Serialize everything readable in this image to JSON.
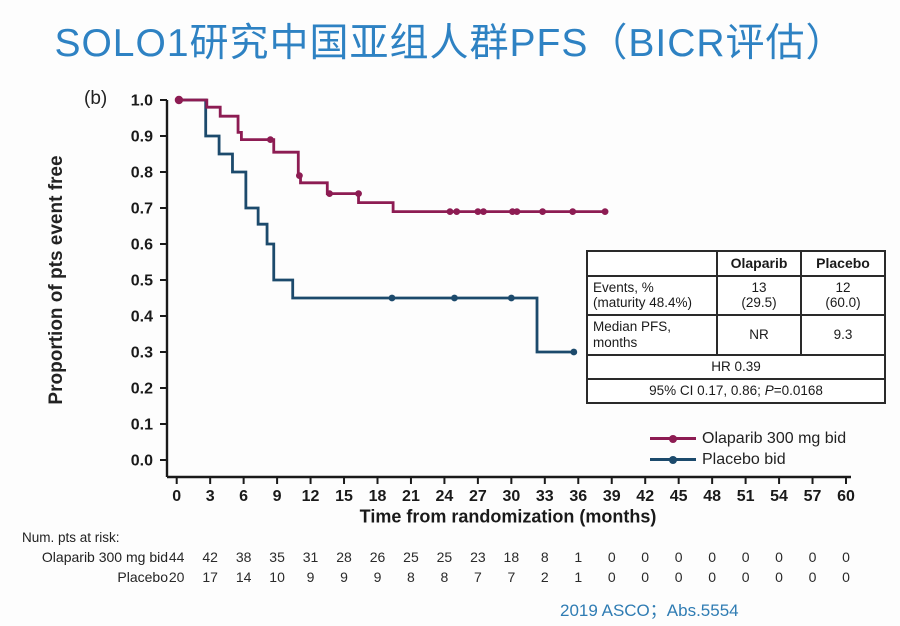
{
  "title": "SOLO1研究中国亚组人群PFS（BICR评估）",
  "panel_label": "(b)",
  "footer": "2019 ASCO；Abs.5554",
  "colors": {
    "title_blue": "#2e82c3",
    "footer_blue": "#2f7cb3",
    "olaparib_line": "#8d1c53",
    "placebo_line": "#1c4a6c",
    "axis": "#1a1a1a"
  },
  "chart_data": {
    "type": "line",
    "variant": "kaplan_meier_step",
    "title": "",
    "xlabel": "Time from randomization (months)",
    "ylabel": "Proportion of pts event free",
    "xlim": [
      0,
      60
    ],
    "ylim": [
      0.0,
      1.0
    ],
    "xticks": [
      0,
      3,
      6,
      9,
      12,
      15,
      18,
      21,
      24,
      27,
      30,
      33,
      36,
      39,
      42,
      45,
      48,
      51,
      54,
      57,
      60
    ],
    "ytick_labels": [
      "0.0",
      "0.1",
      "0.2",
      "0.3",
      "0.4",
      "0.5",
      "0.6",
      "0.7",
      "0.8",
      "0.9",
      "1.0"
    ],
    "grid": false,
    "legend_position": "lower right",
    "series": [
      {
        "name": "Olaparib 300 mg bid",
        "color": "#8d1c53",
        "steps": [
          [
            0,
            1.0
          ],
          [
            2.7,
            0.98
          ],
          [
            3.9,
            0.955
          ],
          [
            5.5,
            0.91
          ],
          [
            5.8,
            0.89
          ],
          [
            8.7,
            0.855
          ],
          [
            10.9,
            0.79
          ],
          [
            11.1,
            0.77
          ],
          [
            13.5,
            0.74
          ],
          [
            16.3,
            0.715
          ],
          [
            19.4,
            0.69
          ]
        ],
        "end_time": 38.4,
        "censor_marks": [
          [
            0.2,
            1.0
          ],
          [
            8.4,
            0.89
          ],
          [
            11.0,
            0.79
          ],
          [
            13.7,
            0.74
          ],
          [
            16.3,
            0.74
          ],
          [
            24.5,
            0.69
          ],
          [
            25.1,
            0.69
          ],
          [
            27.0,
            0.69
          ],
          [
            27.5,
            0.69
          ],
          [
            30.1,
            0.69
          ],
          [
            30.5,
            0.69
          ],
          [
            32.8,
            0.69
          ],
          [
            35.5,
            0.69
          ],
          [
            38.4,
            0.69
          ]
        ]
      },
      {
        "name": "Placebo bid",
        "color": "#1c4a6c",
        "steps": [
          [
            0,
            1.0
          ],
          [
            2.6,
            0.9
          ],
          [
            3.8,
            0.85
          ],
          [
            5.0,
            0.8
          ],
          [
            6.2,
            0.7
          ],
          [
            7.3,
            0.655
          ],
          [
            8.1,
            0.6
          ],
          [
            8.7,
            0.5
          ],
          [
            10.4,
            0.45
          ],
          [
            32.3,
            0.3
          ]
        ],
        "end_time": 35.6,
        "censor_marks": [
          [
            19.3,
            0.45
          ],
          [
            24.9,
            0.45
          ],
          [
            30.0,
            0.45
          ],
          [
            35.6,
            0.3
          ]
        ]
      }
    ]
  },
  "stats_table": {
    "header": {
      "olaparib": "Olaparib",
      "placebo": "Placebo"
    },
    "events": {
      "label1": "Events, %",
      "label2": "(maturity 48.4%)",
      "ola1": "13",
      "ola2": "(29.5)",
      "pla1": "12",
      "pla2": "(60.0)"
    },
    "median": {
      "label1": "Median PFS,",
      "label2": "months",
      "ola": "NR",
      "pla": "9.3"
    },
    "hr": "HR 0.39",
    "ci_prefix": "95% CI 0.17, 0.86; ",
    "ci_p": "P",
    "ci_suffix": "=0.0168"
  },
  "risk_table": {
    "caption": "Num. pts at risk:",
    "rows": [
      {
        "label": "Olaparib 300 mg bid",
        "values": [
          44,
          42,
          38,
          35,
          31,
          28,
          26,
          25,
          25,
          23,
          18,
          8,
          1,
          0,
          0,
          0,
          0,
          0,
          0,
          0,
          0
        ]
      },
      {
        "label": "Placebo",
        "values": [
          20,
          17,
          14,
          10,
          9,
          9,
          9,
          8,
          8,
          7,
          7,
          2,
          1,
          0,
          0,
          0,
          0,
          0,
          0,
          0,
          0
        ]
      }
    ]
  }
}
